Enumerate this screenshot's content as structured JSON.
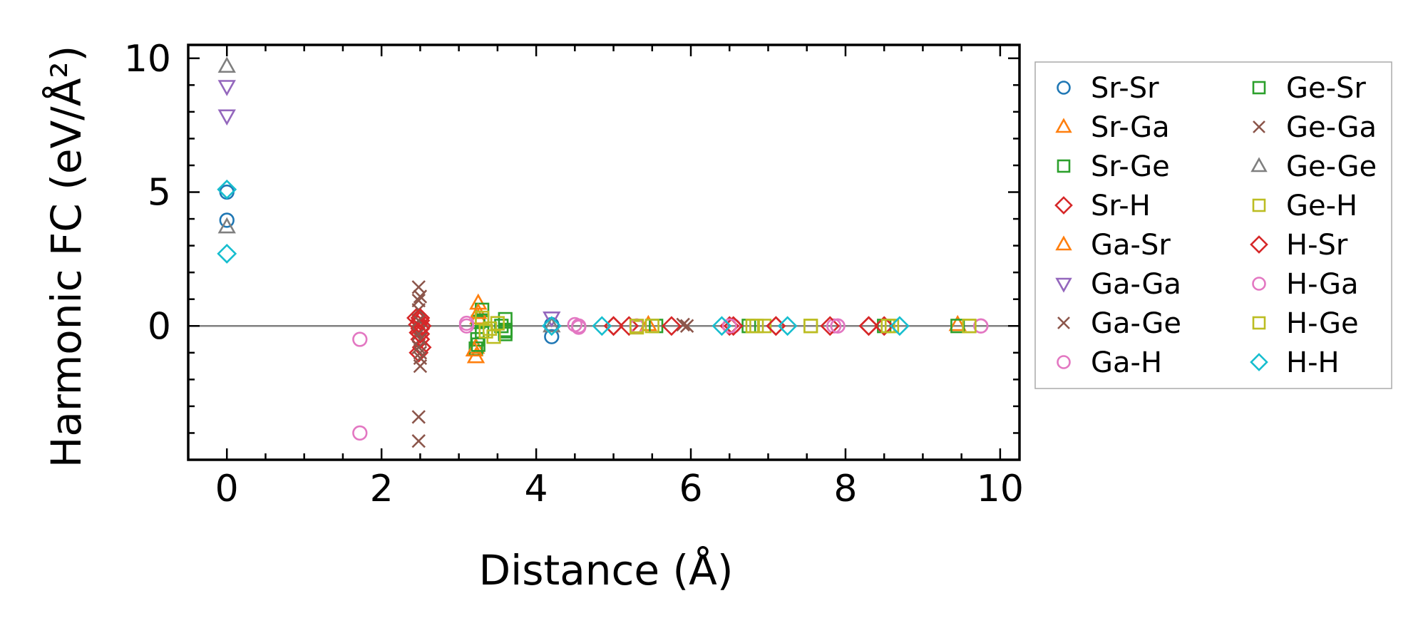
{
  "chart_data": {
    "type": "scatter",
    "title": "",
    "xlabel": "Distance (Å)",
    "ylabel": "Harmonic FC (eV/Å²)",
    "xlim": [
      -0.5,
      10.25
    ],
    "ylim": [
      -5,
      10.5
    ],
    "xticks": [
      0,
      2,
      4,
      6,
      8,
      10
    ],
    "yticks": [
      0,
      5,
      10
    ],
    "legend_position": "right-outside",
    "series": [
      {
        "name": "Sr-Sr",
        "marker": "circle",
        "color": "#1f77b4",
        "x": [
          0,
          0,
          4.2,
          4.2
        ],
        "y": [
          5.0,
          3.95,
          -0.4,
          0.05
        ]
      },
      {
        "name": "Sr-Ga",
        "marker": "triangle-up",
        "color": "#ff7f0e",
        "x": [
          3.22,
          3.22,
          3.25,
          3.25
        ],
        "y": [
          -1.15,
          -0.8,
          0.3,
          0.85
        ]
      },
      {
        "name": "Sr-Ge",
        "marker": "square",
        "color": "#2ca02c",
        "x": [
          3.22,
          3.24,
          3.25,
          3.3,
          3.3,
          3.6,
          3.6,
          3.6
        ],
        "y": [
          -0.85,
          -0.5,
          0.15,
          0.6,
          -0.2,
          0.25,
          -0.15,
          -0.3
        ]
      },
      {
        "name": "Sr-H",
        "marker": "diamond",
        "color": "#d62728",
        "x": [
          2.45,
          2.47,
          2.48,
          2.5,
          2.52,
          2.5,
          2.48,
          2.5,
          2.52,
          5.0,
          5.2,
          6.5,
          7.1,
          8.3
        ],
        "y": [
          0.3,
          0.05,
          -0.25,
          -0.5,
          -0.8,
          0.2,
          -1.0,
          -0.1,
          0.0,
          0.0,
          0.0,
          0.0,
          0.0,
          0.0
        ]
      },
      {
        "name": "Ga-Sr",
        "marker": "triangle-up",
        "color": "#ff7f0e",
        "x": [
          3.2,
          3.25,
          5.45,
          9.45
        ],
        "y": [
          -0.9,
          0.5,
          0.05,
          0.05
        ]
      },
      {
        "name": "Ga-Ga",
        "marker": "triangle-down",
        "color": "#9467bd",
        "x": [
          0,
          0,
          4.2
        ],
        "y": [
          8.95,
          7.85,
          0.3
        ]
      },
      {
        "name": "Ga-Ge",
        "marker": "x",
        "color": "#8c564b",
        "x": [
          2.48,
          2.48,
          2.48,
          2.48,
          2.48,
          2.48,
          2.5,
          2.5,
          2.5,
          2.48,
          2.48,
          5.95
        ],
        "y": [
          1.45,
          0.95,
          0.6,
          0.2,
          -0.3,
          -0.8,
          -1.2,
          -1.5,
          -1.0,
          -3.4,
          -4.3,
          0.0
        ]
      },
      {
        "name": "Ga-H",
        "marker": "circle",
        "color": "#e377c2",
        "x": [
          1.72,
          1.72,
          3.1,
          4.5,
          4.55,
          5.3,
          6.55,
          7.85,
          7.9,
          9.75
        ],
        "y": [
          -0.5,
          -4.0,
          0.1,
          0.05,
          -0.05,
          0.0,
          0.0,
          0.0,
          0.0,
          0.0
        ]
      },
      {
        "name": "Ge-Sr",
        "marker": "square",
        "color": "#2ca02c",
        "x": [
          3.25,
          3.3,
          3.55,
          3.6,
          5.55,
          6.75,
          8.5,
          9.45
        ],
        "y": [
          -0.7,
          0.2,
          0.0,
          -0.2,
          0.0,
          0.0,
          0.0,
          0.0
        ]
      },
      {
        "name": "Ge-Ga",
        "marker": "x",
        "color": "#8c564b",
        "x": [
          2.5,
          2.5,
          5.9
        ],
        "y": [
          1.1,
          -0.5,
          0.05
        ]
      },
      {
        "name": "Ge-Ge",
        "marker": "triangle-up",
        "color": "#7f7f7f",
        "x": [
          0,
          0,
          4.2
        ],
        "y": [
          9.7,
          3.7,
          0.0
        ]
      },
      {
        "name": "Ge-H",
        "marker": "square",
        "color": "#bcbd22",
        "x": [
          3.3,
          3.4,
          3.45,
          3.5,
          5.3,
          5.5,
          6.8,
          6.95,
          7.55,
          8.6,
          9.6
        ],
        "y": [
          0.3,
          -0.1,
          -0.4,
          0.1,
          -0.05,
          0.0,
          0.0,
          0.0,
          0.0,
          0.0,
          0.0
        ]
      },
      {
        "name": "H-Sr",
        "marker": "diamond",
        "color": "#d62728",
        "x": [
          2.5,
          2.5,
          5.0,
          5.75,
          6.55,
          7.1,
          7.8,
          8.3,
          8.5
        ],
        "y": [
          -0.3,
          0.3,
          0.0,
          0.0,
          0.0,
          0.0,
          0.0,
          0.0,
          0.0
        ]
      },
      {
        "name": "H-Ga",
        "marker": "circle",
        "color": "#e377c2",
        "x": [
          3.1,
          4.55,
          5.3,
          6.5,
          7.9,
          9.75
        ],
        "y": [
          0.0,
          0.0,
          0.0,
          0.0,
          0.0,
          0.0
        ]
      },
      {
        "name": "H-Ge",
        "marker": "square",
        "color": "#bcbd22",
        "x": [
          3.35,
          5.3,
          6.85,
          7.55,
          8.55,
          9.6
        ],
        "y": [
          -0.2,
          0.0,
          0.0,
          0.0,
          0.0,
          0.0
        ]
      },
      {
        "name": "H-H",
        "marker": "diamond",
        "color": "#17becf",
        "x": [
          0,
          0,
          4.2,
          4.85,
          6.4,
          7.25,
          8.7
        ],
        "y": [
          5.1,
          2.7,
          0.0,
          0.0,
          0.0,
          0.0,
          0.0
        ]
      }
    ]
  }
}
